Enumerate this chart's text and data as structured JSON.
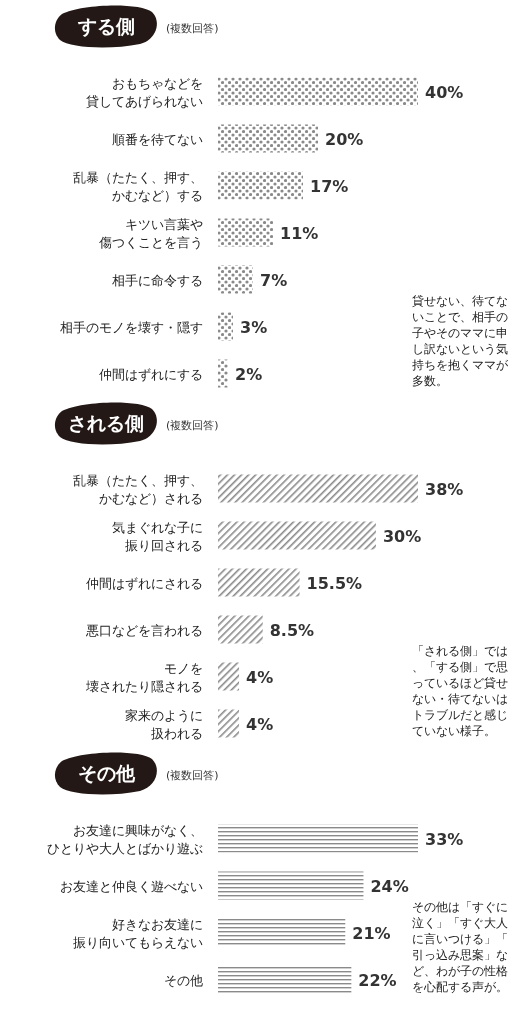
{
  "chart_data": [
    {
      "type": "bar",
      "orientation": "horizontal",
      "title": "する側",
      "subtitle": "(複数回答)",
      "categories": [
        "おもちゃなどを貸してあげられない",
        "順番を待てない",
        "乱暴（たたく、押す、かむなど）する",
        "キツい言葉や傷つくことを言う",
        "相手に命令する",
        "相手のモノを壊す・隠す",
        "仲間はずれにする"
      ],
      "values": [
        40,
        20,
        17,
        11,
        7,
        3,
        2
      ],
      "value_labels": [
        "40%",
        "20%",
        "17%",
        "11%",
        "7%",
        "3%",
        "2%"
      ],
      "color": "#8a8a8a",
      "annotations": [
        "貸せない、待てないことで、相手の子やそのママに申し訳ないという気持ちを抱くママが多数。"
      ]
    },
    {
      "type": "bar",
      "orientation": "horizontal",
      "title": "される側",
      "subtitle": "(複数回答)",
      "categories": [
        "乱暴（たたく、押す、かむなど）される",
        "気まぐれな子に振り回される",
        "仲間はずれにされる",
        "悪口などを言われる",
        "モノを壊されたり隠される",
        "家来のように扱われる"
      ],
      "values": [
        38,
        30,
        15.5,
        8.5,
        4,
        4
      ],
      "value_labels": [
        "38%",
        "30%",
        "15.5%",
        "8.5%",
        "4%",
        "4%"
      ],
      "color": "#8a8a8a",
      "annotations": [
        "「される側」では、「する側」で思っているほど貸せない・待てないはトラブルだと感じていない様子。"
      ]
    },
    {
      "type": "bar",
      "orientation": "horizontal",
      "title": "その他",
      "subtitle": "(複数回答)",
      "categories": [
        "お友達に興味がなく、ひとりや大人とばかり遊ぶ",
        "お友達と仲良く遊べない",
        "好きなお友達に振り向いてもらえない",
        "その他"
      ],
      "values": [
        33,
        24,
        21,
        22
      ],
      "value_labels": [
        "33%",
        "24%",
        "21%",
        "22%"
      ],
      "color": "#8a8a8a",
      "annotations": [
        "その他は「すぐに泣く」「すぐ大人に言いつける」「引っ込み思案」など、わが子の性格を心配する声が。"
      ]
    }
  ]
}
